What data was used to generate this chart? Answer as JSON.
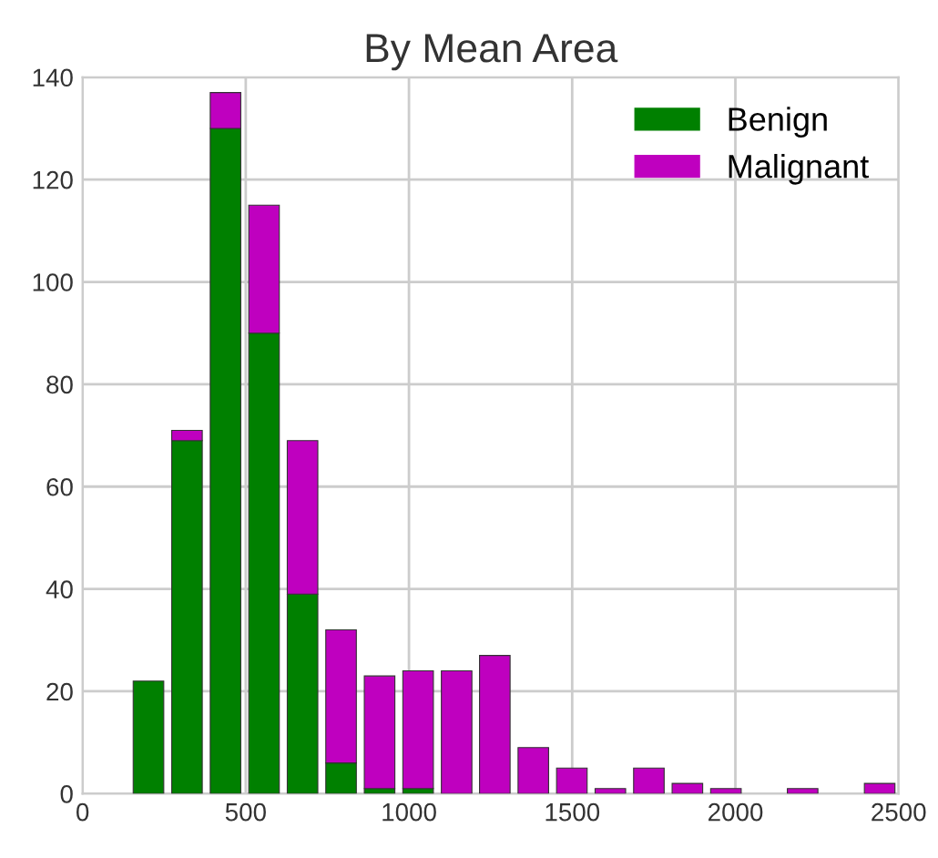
{
  "chart_data": {
    "type": "bar",
    "title": "By Mean Area",
    "stacked": true,
    "x": [
      202,
      320,
      438,
      556,
      674,
      792,
      910,
      1028,
      1146,
      1263,
      1381,
      1499,
      1617,
      1735,
      1853,
      1971,
      2089,
      2206,
      2324,
      2442
    ],
    "series": [
      {
        "name": "Benign",
        "color": "#008000",
        "values": [
          22,
          69,
          130,
          90,
          39,
          6,
          1,
          1,
          0,
          0,
          0,
          0,
          0,
          0,
          0,
          0,
          0,
          0,
          0,
          0
        ]
      },
      {
        "name": "Malignant",
        "color": "#bf00bf",
        "values": [
          0,
          2,
          7,
          25,
          30,
          26,
          22,
          23,
          24,
          27,
          9,
          5,
          1,
          5,
          2,
          1,
          0,
          1,
          0,
          2
        ]
      }
    ],
    "xlim": [
      0,
      2500
    ],
    "xticks": [
      0,
      500,
      1000,
      1500,
      2000,
      2500
    ],
    "ylim": [
      0,
      140
    ],
    "yticks": [
      0,
      20,
      40,
      60,
      80,
      100,
      120,
      140
    ],
    "grid": true,
    "legend": "top right"
  }
}
